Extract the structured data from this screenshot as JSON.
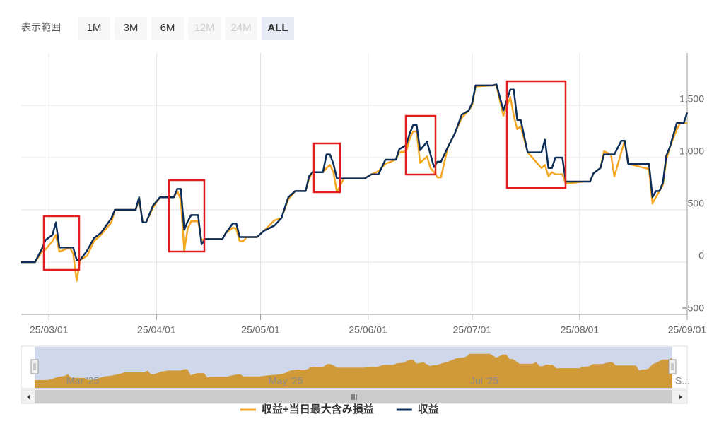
{
  "range_selector": {
    "label": "表示範囲",
    "selected": 5,
    "buttons": [
      {
        "text": "1M",
        "enabled": true
      },
      {
        "text": "3M",
        "enabled": true
      },
      {
        "text": "6M",
        "enabled": true
      },
      {
        "text": "12M",
        "enabled": false
      },
      {
        "text": "24M",
        "enabled": false
      },
      {
        "text": "ALL",
        "enabled": true
      }
    ]
  },
  "chart_data": {
    "type": "line",
    "x": [
      "2025-02-21",
      "2025-02-25",
      "2025-02-27",
      "2025-02-28",
      "2025-03-02",
      "2025-03-03",
      "2025-03-04",
      "2025-03-07",
      "2025-03-08",
      "2025-03-09",
      "2025-03-10",
      "2025-03-12",
      "2025-03-14",
      "2025-03-16",
      "2025-03-19",
      "2025-03-20",
      "2025-03-26",
      "2025-03-27",
      "2025-03-28",
      "2025-03-29",
      "2025-03-31",
      "2025-04-02",
      "2025-04-06",
      "2025-04-07",
      "2025-04-08",
      "2025-04-09",
      "2025-04-10",
      "2025-04-11",
      "2025-04-13",
      "2025-04-14",
      "2025-04-15",
      "2025-04-20",
      "2025-04-21",
      "2025-04-23",
      "2025-04-24",
      "2025-04-25",
      "2025-04-26",
      "2025-04-27",
      "2025-04-30",
      "2025-05-02",
      "2025-05-05",
      "2025-05-07",
      "2025-05-09",
      "2025-05-11",
      "2025-05-14",
      "2025-05-15",
      "2025-05-16",
      "2025-05-18",
      "2025-05-19",
      "2025-05-20",
      "2025-05-21",
      "2025-05-22",
      "2025-05-23",
      "2025-05-25",
      "2025-05-31",
      "2025-06-02",
      "2025-06-04",
      "2025-06-06",
      "2025-06-09",
      "2025-06-10",
      "2025-06-12",
      "2025-06-13",
      "2025-06-14",
      "2025-06-15",
      "2025-06-16",
      "2025-06-18",
      "2025-06-19",
      "2025-06-20",
      "2025-06-21",
      "2025-06-22",
      "2025-06-24",
      "2025-06-26",
      "2025-06-28",
      "2025-06-30",
      "2025-07-01",
      "2025-07-02",
      "2025-07-07",
      "2025-07-08",
      "2025-07-10",
      "2025-07-12",
      "2025-07-13",
      "2025-07-14",
      "2025-07-15",
      "2025-07-17",
      "2025-07-21",
      "2025-07-22",
      "2025-07-23",
      "2025-07-24",
      "2025-07-25",
      "2025-07-27",
      "2025-07-28",
      "2025-08-02",
      "2025-08-04",
      "2025-08-05",
      "2025-08-07",
      "2025-08-08",
      "2025-08-10",
      "2025-08-11",
      "2025-08-13",
      "2025-08-14",
      "2025-08-15",
      "2025-08-21",
      "2025-08-22",
      "2025-08-23",
      "2025-08-24",
      "2025-08-25",
      "2025-08-26",
      "2025-08-27",
      "2025-08-29",
      "2025-08-30",
      "2025-08-31",
      "2025-09-01"
    ],
    "series": [
      {
        "name": "収益+当日最大含み損益",
        "color": "#f5a623",
        "values": [
          0,
          0,
          100,
          120,
          200,
          260,
          100,
          140,
          80,
          -180,
          20,
          60,
          200,
          260,
          380,
          500,
          500,
          600,
          380,
          380,
          520,
          620,
          620,
          680,
          600,
          110,
          320,
          390,
          390,
          210,
          220,
          220,
          280,
          330,
          320,
          200,
          200,
          240,
          240,
          300,
          400,
          420,
          600,
          680,
          680,
          800,
          860,
          860,
          860,
          900,
          930,
          860,
          670,
          800,
          800,
          840,
          870,
          940,
          980,
          1050,
          1060,
          1180,
          1250,
          1250,
          950,
          1010,
          900,
          860,
          810,
          810,
          1100,
          1230,
          1380,
          1450,
          1500,
          1680,
          1690,
          1690,
          1400,
          1580,
          1400,
          1270,
          1300,
          1050,
          900,
          930,
          820,
          860,
          840,
          840,
          750,
          770,
          770,
          850,
          900,
          1060,
          1030,
          820,
          1050,
          1160,
          940,
          890,
          560,
          620,
          680,
          740,
          980,
          1100,
          1270,
          1330,
          1330,
          1330
        ]
      },
      {
        "name": "収益",
        "color": "#0c2d57",
        "values": [
          0,
          0,
          130,
          210,
          260,
          380,
          140,
          140,
          140,
          20,
          20,
          110,
          230,
          280,
          420,
          500,
          500,
          620,
          380,
          380,
          540,
          620,
          620,
          700,
          700,
          310,
          390,
          450,
          450,
          170,
          220,
          220,
          280,
          370,
          370,
          240,
          240,
          240,
          240,
          300,
          350,
          420,
          620,
          680,
          680,
          820,
          860,
          860,
          860,
          1030,
          1030,
          940,
          800,
          800,
          800,
          840,
          840,
          980,
          980,
          1080,
          1120,
          1230,
          1310,
          1310,
          1070,
          1150,
          1030,
          910,
          960,
          960,
          1100,
          1230,
          1410,
          1450,
          1520,
          1690,
          1690,
          1700,
          1450,
          1650,
          1650,
          1360,
          1360,
          1050,
          1050,
          1170,
          900,
          900,
          1000,
          1000,
          770,
          770,
          770,
          850,
          900,
          1030,
          1030,
          1030,
          1160,
          1160,
          940,
          940,
          620,
          680,
          680,
          760,
          1020,
          1100,
          1330,
          1330,
          1330,
          1430
        ]
      }
    ],
    "xlim": [
      "2025-02-21",
      "2025-09-01"
    ],
    "xticks": [
      {
        "value": "2025-03-01",
        "label": "25/03/01"
      },
      {
        "value": "2025-04-01",
        "label": "25/04/01"
      },
      {
        "value": "2025-05-01",
        "label": "25/05/01"
      },
      {
        "value": "2025-06-01",
        "label": "25/06/01"
      },
      {
        "value": "2025-07-01",
        "label": "25/07/01"
      },
      {
        "value": "2025-08-01",
        "label": "25/08/01"
      },
      {
        "value": "2025-09-01",
        "label": "25/09/01"
      }
    ],
    "ylim": [
      -500,
      2000
    ],
    "yticks": [
      {
        "value": -500,
        "label": "−500"
      },
      0,
      500,
      {
        "value": 1000,
        "label": "1,000"
      },
      {
        "value": 1500,
        "label": "1,500"
      }
    ],
    "grid": true,
    "legend": "bottom",
    "navigator": {
      "labels": [
        "Mar '25",
        "May '25",
        "Jul '25",
        "S..."
      ],
      "color": "#d09a3a"
    }
  }
}
